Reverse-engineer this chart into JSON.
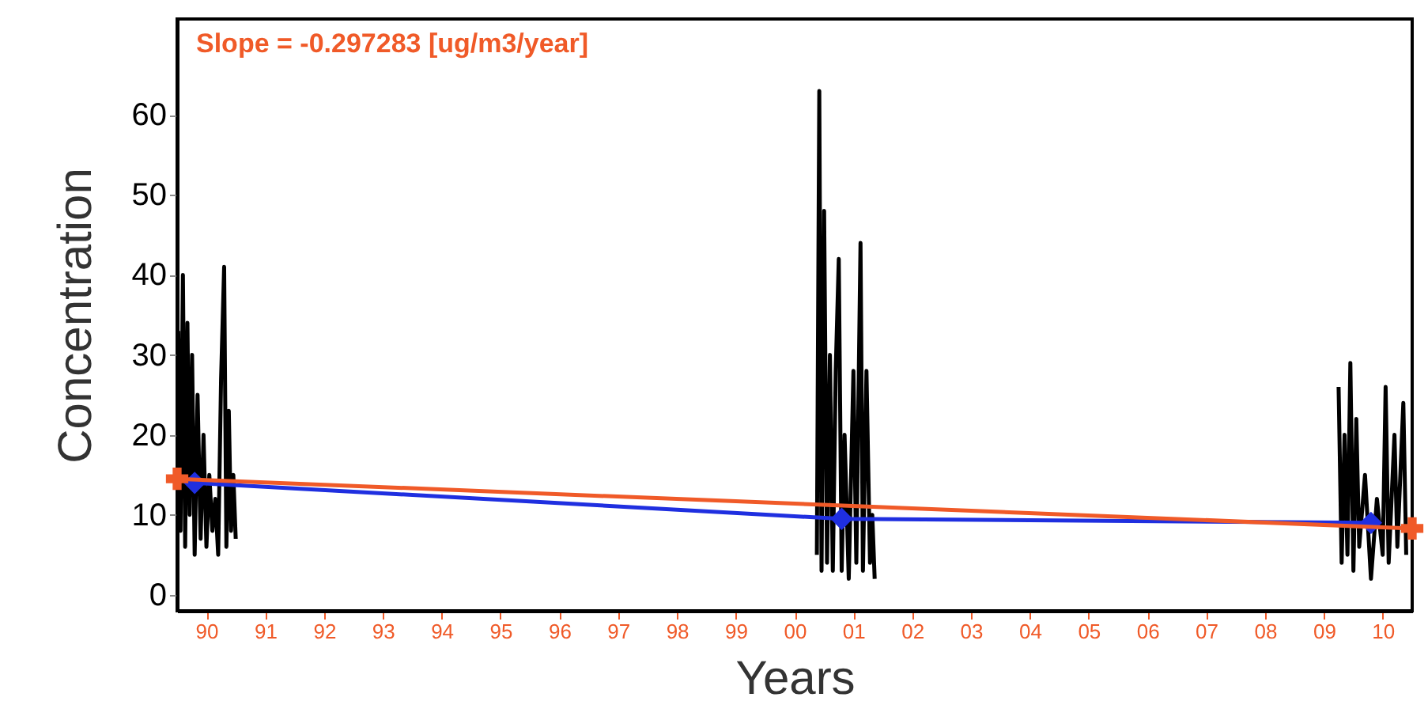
{
  "chart_data": {
    "type": "line",
    "xlabel": "Years",
    "ylabel": "Concentration",
    "annotations": [
      "Slope = -0.297283 [ug/m3/year]"
    ],
    "xlim": [
      "1990-01-01",
      "2011-01-01"
    ],
    "ylim": [
      -2,
      72
    ],
    "xticks": [
      {
        "value": "1990-07-02",
        "label": "90"
      },
      {
        "value": "1991-07-02",
        "label": "91"
      },
      {
        "value": "1992-07-02",
        "label": "92"
      },
      {
        "value": "1993-07-02",
        "label": "93"
      },
      {
        "value": "1994-07-02",
        "label": "94"
      },
      {
        "value": "1995-07-02",
        "label": "95"
      },
      {
        "value": "1996-07-02",
        "label": "96"
      },
      {
        "value": "1997-07-02",
        "label": "97"
      },
      {
        "value": "1998-07-02",
        "label": "98"
      },
      {
        "value": "1999-07-02",
        "label": "99"
      },
      {
        "value": "2000-07-02",
        "label": "00"
      },
      {
        "value": "2001-07-02",
        "label": "01"
      },
      {
        "value": "2002-07-02",
        "label": "02"
      },
      {
        "value": "2003-07-02",
        "label": "03"
      },
      {
        "value": "2004-07-02",
        "label": "04"
      },
      {
        "value": "2005-07-02",
        "label": "05"
      },
      {
        "value": "2006-07-02",
        "label": "06"
      },
      {
        "value": "2007-07-02",
        "label": "07"
      },
      {
        "value": "2008-07-02",
        "label": "08"
      },
      {
        "value": "2009-07-02",
        "label": "09"
      },
      {
        "value": "2010-07-02",
        "label": "10"
      }
    ],
    "yticks": [
      0,
      10,
      20,
      30,
      40,
      50,
      60
    ],
    "grid": false,
    "series": [
      {
        "color": "#000000",
        "marker": "none",
        "x": [
          "1990-01-08",
          "1990-01-22",
          "1990-02-06",
          "1990-02-20",
          "1990-03-06",
          "1990-03-20",
          "1990-04-04",
          "1990-04-20",
          "1990-05-08",
          "1990-05-27",
          "1990-06-14",
          "1990-07-02",
          "1990-07-20",
          "1990-08-08",
          "1990-08-26",
          "1990-09-13",
          "1990-10-01",
          "1990-10-20",
          "1990-11-03",
          "1990-11-18",
          "1990-12-02",
          "1990-12-16",
          "1990-12-31",
          "1995-07-01",
          "2000-11-17",
          "2000-12-02",
          "2000-12-16",
          "2001-01-01",
          "2001-01-19",
          "2001-02-06",
          "2001-02-24",
          "2001-03-14",
          "2001-04-02",
          "2001-04-20",
          "2001-05-08",
          "2001-06-03",
          "2001-07-02",
          "2001-07-20",
          "2001-08-15",
          "2001-08-30",
          "2001-09-21",
          "2001-10-13",
          "2001-10-27",
          "2001-11-11",
          "2005-07-01",
          "2009-10-01",
          "2009-10-20",
          "2009-11-07",
          "2009-11-25",
          "2009-12-13",
          "2010-01-01",
          "2010-01-19",
          "2010-02-06",
          "2010-03-14",
          "2010-04-20",
          "2010-05-27",
          "2010-07-02",
          "2010-07-20",
          "2010-08-08",
          "2010-09-13",
          "2010-10-01",
          "2010-11-07",
          "2010-11-25"
        ],
        "values": [
          33,
          8,
          40,
          6,
          34,
          10,
          30,
          5,
          25,
          7,
          20,
          6,
          15,
          8,
          12,
          5,
          27,
          41,
          6,
          23,
          8,
          15,
          7,
          null,
          5,
          63,
          3,
          48,
          4,
          30,
          3,
          28,
          42,
          3,
          20,
          2,
          28,
          4,
          44,
          3,
          28,
          4,
          10,
          2,
          null,
          26,
          4,
          20,
          5,
          29,
          3,
          22,
          6,
          15,
          2,
          12,
          5,
          26,
          4,
          20,
          6,
          24,
          5
        ]
      },
      {
        "color": "#1f2fe0",
        "marker": "diamond",
        "x": [
          "1990-04-20",
          "2001-04-20",
          "2010-04-20"
        ],
        "values": [
          14,
          9.5,
          9
        ]
      },
      {
        "color": "#f05a28",
        "marker": "cross",
        "x": [
          "1990-01-01",
          "2011-01-01"
        ],
        "values": [
          14.5,
          8.3
        ]
      }
    ]
  }
}
